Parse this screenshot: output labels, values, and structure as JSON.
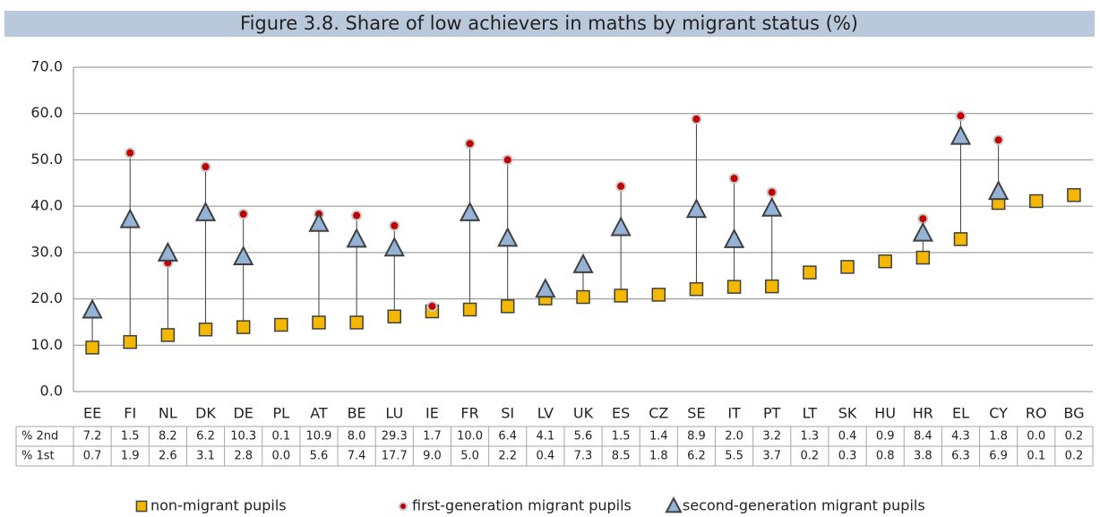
{
  "chart_data": {
    "type": "dot",
    "title": "Figure 3.8. Share of low achievers in maths by migrant status (%)",
    "categories": [
      "EE",
      "FI",
      "NL",
      "DK",
      "DE",
      "PL",
      "AT",
      "BE",
      "LU",
      "IE",
      "FR",
      "SI",
      "LV",
      "UK",
      "ES",
      "CZ",
      "SE",
      "IT",
      "PT",
      "LT",
      "SK",
      "HU",
      "HR",
      "EL",
      "CY",
      "RO",
      "BG"
    ],
    "series": [
      {
        "name": "non-migrant pupils",
        "color": "#f5b800",
        "marker": "square",
        "values": [
          9.5,
          10.7,
          12.2,
          13.4,
          13.9,
          14.4,
          14.9,
          14.9,
          16.2,
          17.3,
          17.7,
          18.4,
          20.1,
          20.4,
          20.7,
          20.9,
          22.1,
          22.6,
          22.7,
          25.7,
          26.9,
          28.1,
          28.9,
          32.9,
          40.7,
          41.1,
          42.4
        ]
      },
      {
        "name": "first-generation migrant pupils",
        "color": "#c00000",
        "marker": "circle",
        "values": [
          null,
          51.5,
          27.8,
          48.5,
          38.3,
          null,
          38.3,
          38.0,
          35.8,
          18.4,
          53.5,
          50.0,
          null,
          null,
          44.3,
          null,
          58.8,
          46.0,
          43.0,
          null,
          null,
          null,
          37.3,
          59.5,
          54.3,
          null,
          null
        ]
      },
      {
        "name": "second-generation migrant pupils",
        "color": "#95b3d7",
        "marker": "triangle",
        "values": [
          17.5,
          37.0,
          29.8,
          38.5,
          29.0,
          null,
          36.2,
          32.8,
          30.9,
          null,
          38.5,
          33.0,
          22.0,
          27.3,
          35.3,
          null,
          39.2,
          32.7,
          39.5,
          null,
          null,
          null,
          34.1,
          55.0,
          43.1,
          null,
          null
        ]
      }
    ],
    "ylim": [
      0,
      70
    ],
    "yticks": [
      {
        "value": 0,
        "label": "0.0"
      },
      {
        "value": 10,
        "label": "10.0"
      },
      {
        "value": 20,
        "label": "20.0"
      },
      {
        "value": 30,
        "label": "30.0"
      },
      {
        "value": 40,
        "label": "40.0"
      },
      {
        "value": 50,
        "label": "50.0"
      },
      {
        "value": 60,
        "label": "60.0"
      },
      {
        "value": 70,
        "label": "70.0"
      }
    ],
    "grid": true
  },
  "table": {
    "row_labels": [
      "% 2nd",
      "% 1st"
    ],
    "rows": [
      [
        "7.2",
        "1.5",
        "8.2",
        "6.2",
        "10.3",
        "0.1",
        "10.9",
        "8.0",
        "29.3",
        "1.7",
        "10.0",
        "6.4",
        "4.1",
        "5.6",
        "1.5",
        "1.4",
        "8.9",
        "2.0",
        "3.2",
        "1.3",
        "0.4",
        "0.9",
        "8.4",
        "4.3",
        "1.8",
        "0.0",
        "0.2"
      ],
      [
        "0.7",
        "1.9",
        "2.6",
        "3.1",
        "2.8",
        "0.0",
        "5.6",
        "7.4",
        "17.7",
        "9.0",
        "5.0",
        "2.2",
        "0.4",
        "7.3",
        "8.5",
        "1.8",
        "6.2",
        "5.5",
        "3.7",
        "0.2",
        "0.3",
        "0.8",
        "3.8",
        "6.3",
        "6.9",
        "0.1",
        "0.2"
      ]
    ]
  }
}
